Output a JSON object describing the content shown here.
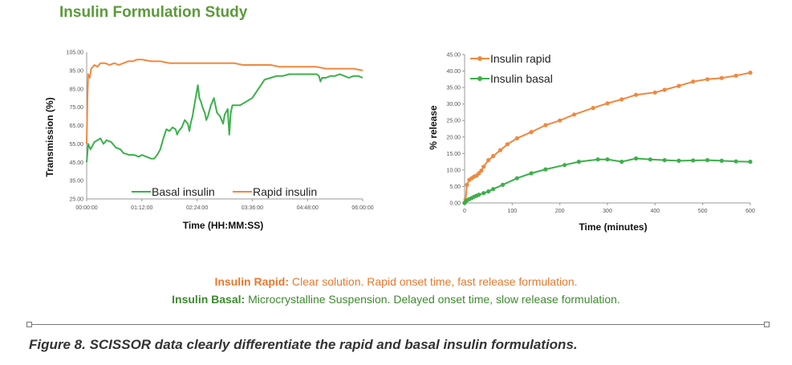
{
  "title": "Insulin Formulation Study",
  "colors": {
    "rapid": "#f0883e",
    "basal": "#3cb04a",
    "title": "#5b9a3a"
  },
  "chart_data": [
    {
      "type": "line",
      "xlabel": "Time (HH:MM:SS)",
      "ylabel": "Transmission (%)",
      "ylim": [
        25,
        105
      ],
      "yticks": [
        "105.00",
        "95.00",
        "85.00",
        "75.00",
        "65.00",
        "55.00",
        "45.00",
        "35.00",
        "25.00"
      ],
      "xticks": [
        "00:00:00",
        "01:12:00",
        "02:24:00",
        "03:36:00",
        "04:48:00",
        "06:00:00"
      ],
      "x_minutes": [
        0,
        72,
        144,
        216,
        288,
        360
      ],
      "legend_placement": "bottom",
      "series": [
        {
          "name": "Basal insulin",
          "color": "#3cb04a",
          "points": [
            [
              0,
              45
            ],
            [
              2,
              55
            ],
            [
              5,
              52
            ],
            [
              10,
              56
            ],
            [
              18,
              58
            ],
            [
              22,
              55
            ],
            [
              26,
              57
            ],
            [
              32,
              56
            ],
            [
              38,
              53
            ],
            [
              44,
              52
            ],
            [
              48,
              50
            ],
            [
              55,
              49
            ],
            [
              62,
              49
            ],
            [
              68,
              48
            ],
            [
              72,
              49
            ],
            [
              78,
              48
            ],
            [
              84,
              47
            ],
            [
              88,
              47
            ],
            [
              92,
              49
            ],
            [
              96,
              52
            ],
            [
              100,
              58
            ],
            [
              104,
              63
            ],
            [
              108,
              62
            ],
            [
              112,
              64
            ],
            [
              116,
              63
            ],
            [
              118,
              60
            ],
            [
              120,
              62
            ],
            [
              124,
              64
            ],
            [
              128,
              68
            ],
            [
              132,
              66
            ],
            [
              134,
              62
            ],
            [
              136,
              67
            ],
            [
              138,
              70
            ],
            [
              140,
              75
            ],
            [
              143,
              82
            ],
            [
              145,
              87
            ],
            [
              147,
              80
            ],
            [
              149,
              78
            ],
            [
              152,
              74
            ],
            [
              154,
              72
            ],
            [
              156,
              68
            ],
            [
              158,
              70
            ],
            [
              162,
              76
            ],
            [
              166,
              80
            ],
            [
              170,
              72
            ],
            [
              174,
              70
            ],
            [
              178,
              66
            ],
            [
              180,
              71
            ],
            [
              184,
              74
            ],
            [
              186,
              60
            ],
            [
              188,
              72
            ],
            [
              190,
              76
            ],
            [
              194,
              76
            ],
            [
              200,
              76
            ],
            [
              208,
              78
            ],
            [
              216,
              80
            ],
            [
              224,
              85
            ],
            [
              232,
              90
            ],
            [
              240,
              91
            ],
            [
              248,
              92
            ],
            [
              256,
              92
            ],
            [
              264,
              93
            ],
            [
              272,
              93
            ],
            [
              280,
              93
            ],
            [
              286,
              93
            ],
            [
              292,
              93
            ],
            [
              296,
              93
            ],
            [
              300,
              93
            ],
            [
              303,
              92
            ],
            [
              305,
              89
            ],
            [
              307,
              91
            ],
            [
              312,
              91
            ],
            [
              318,
              92
            ],
            [
              324,
              92
            ],
            [
              330,
              93
            ],
            [
              336,
              92
            ],
            [
              342,
              91
            ],
            [
              348,
              92
            ],
            [
              354,
              92
            ],
            [
              360,
              91
            ]
          ]
        },
        {
          "name": "Rapid insulin",
          "color": "#f0883e",
          "points": [
            [
              0,
              55
            ],
            [
              1,
              80
            ],
            [
              2,
              93
            ],
            [
              4,
              91
            ],
            [
              6,
              96
            ],
            [
              10,
              98
            ],
            [
              14,
              97
            ],
            [
              18,
              99
            ],
            [
              24,
              99
            ],
            [
              30,
              98
            ],
            [
              36,
              99
            ],
            [
              42,
              98
            ],
            [
              48,
              99
            ],
            [
              54,
              100
            ],
            [
              60,
              100
            ],
            [
              66,
              101
            ],
            [
              72,
              101
            ],
            [
              84,
              100
            ],
            [
              96,
              100
            ],
            [
              108,
              99
            ],
            [
              120,
              99
            ],
            [
              132,
              99
            ],
            [
              144,
              99
            ],
            [
              156,
              99
            ],
            [
              168,
              99
            ],
            [
              180,
              99
            ],
            [
              192,
              99
            ],
            [
              204,
              98
            ],
            [
              216,
              98
            ],
            [
              228,
              98
            ],
            [
              240,
              98
            ],
            [
              252,
              97
            ],
            [
              264,
              97
            ],
            [
              276,
              97
            ],
            [
              288,
              97
            ],
            [
              300,
              97
            ],
            [
              312,
              96
            ],
            [
              324,
              96
            ],
            [
              336,
              96
            ],
            [
              348,
              96
            ],
            [
              360,
              95
            ]
          ]
        }
      ]
    },
    {
      "type": "line",
      "xlabel": "Time (minutes)",
      "ylabel": "% release",
      "xlim": [
        0,
        600
      ],
      "ylim": [
        0,
        45
      ],
      "xticks": [
        "0",
        "100",
        "200",
        "300",
        "400",
        "500",
        "600"
      ],
      "yticks": [
        "45.00",
        "40.00",
        "35.00",
        "30.00",
        "25.00",
        "20.00",
        "15.00",
        "10.00",
        "5.00",
        "0.00"
      ],
      "legend_placement": "top-left",
      "series": [
        {
          "name": "Insulin rapid",
          "color": "#f0883e",
          "points": [
            [
              0,
              0
            ],
            [
              2,
              1
            ],
            [
              5,
              5.5
            ],
            [
              10,
              7
            ],
            [
              15,
              7.5
            ],
            [
              20,
              8
            ],
            [
              25,
              8.3
            ],
            [
              30,
              9
            ],
            [
              35,
              9.8
            ],
            [
              40,
              11
            ],
            [
              50,
              13
            ],
            [
              60,
              14.2
            ],
            [
              75,
              16
            ],
            [
              90,
              17.8
            ],
            [
              110,
              19.6
            ],
            [
              140,
              21.5
            ],
            [
              170,
              23.6
            ],
            [
              200,
              25
            ],
            [
              230,
              26.8
            ],
            [
              270,
              28.8
            ],
            [
              300,
              30.2
            ],
            [
              330,
              31.4
            ],
            [
              360,
              32.8
            ],
            [
              400,
              33.5
            ],
            [
              420,
              34.3
            ],
            [
              450,
              35.5
            ],
            [
              480,
              36.8
            ],
            [
              510,
              37.5
            ],
            [
              540,
              37.9
            ],
            [
              570,
              38.6
            ],
            [
              600,
              39.5
            ]
          ]
        },
        {
          "name": "Insulin basal",
          "color": "#3cb04a",
          "points": [
            [
              0,
              0
            ],
            [
              2,
              0.4
            ],
            [
              5,
              0.8
            ],
            [
              10,
              1.2
            ],
            [
              15,
              1.5
            ],
            [
              20,
              1.9
            ],
            [
              25,
              2.2
            ],
            [
              30,
              2.5
            ],
            [
              40,
              3
            ],
            [
              50,
              3.5
            ],
            [
              60,
              4.2
            ],
            [
              80,
              5.5
            ],
            [
              110,
              7.5
            ],
            [
              140,
              9
            ],
            [
              170,
              10.2
            ],
            [
              210,
              11.5
            ],
            [
              240,
              12.5
            ],
            [
              280,
              13.2
            ],
            [
              300,
              13.2
            ],
            [
              330,
              12.5
            ],
            [
              360,
              13.5
            ],
            [
              390,
              13.2
            ],
            [
              420,
              13.0
            ],
            [
              450,
              12.8
            ],
            [
              480,
              12.9
            ],
            [
              510,
              13.0
            ],
            [
              540,
              12.8
            ],
            [
              570,
              12.6
            ],
            [
              600,
              12.5
            ]
          ]
        }
      ]
    }
  ],
  "notes": {
    "rapid_label": "Insulin Rapid:",
    "rapid_text": " Clear solution. Rapid onset time, fast release formulation.",
    "basal_label": "Insulin Basal:",
    "basal_text": " Microcrystalline Suspension. Delayed onset time, slow release formulation."
  },
  "caption": "Figure 8. SCISSOR data clearly differentiate the rapid and basal insulin formulations."
}
